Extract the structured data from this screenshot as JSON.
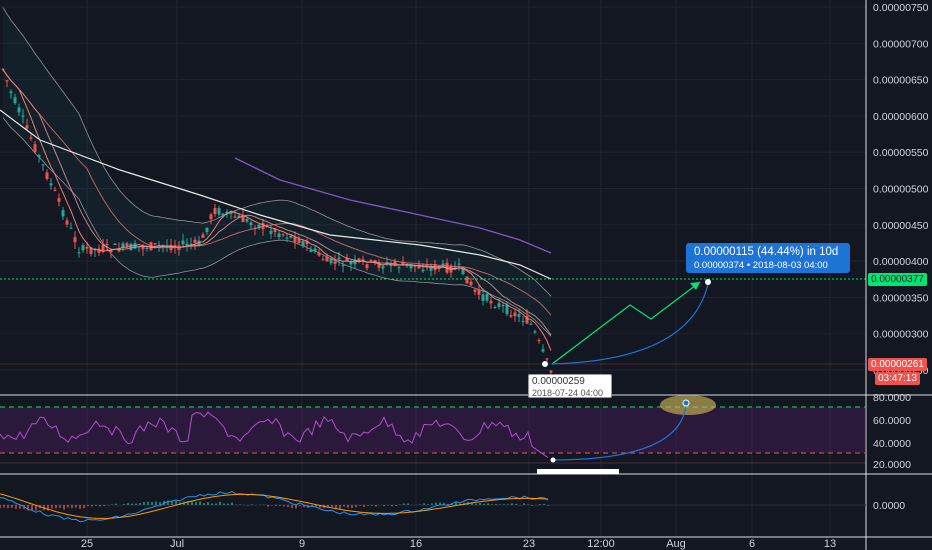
{
  "price_axis": {
    "labels": [
      "0.00000750",
      "0.00000700",
      "0.00000650",
      "0.00000600",
      "0.00000550",
      "0.00000500",
      "0.00000450",
      "0.00000400",
      "0.00000350",
      "0.00000300",
      "0.00000250"
    ]
  },
  "rsi_axis": {
    "labels": [
      "80.0000",
      "60.0000",
      "40.0000",
      "20.0000"
    ]
  },
  "macd_axis": {
    "labels": [
      "0.0000"
    ]
  },
  "time_axis": {
    "labels": [
      "25",
      "Jul",
      "9",
      "16",
      "23",
      "12:00",
      "Aug",
      "6",
      "13"
    ]
  },
  "level_badge": {
    "value": "0.00000377",
    "color": "#00e676"
  },
  "last_price_badge": {
    "value": "0.00000261",
    "countdown": "03:47:13",
    "color": "#ef5350"
  },
  "projection_box": {
    "line1": "0.00000115 (44.44%) in 10d",
    "line2": "0.00000374  •  2018-08-03  04:00",
    "color": "#1e73d6"
  },
  "low_tooltip": {
    "value": "0.00000259",
    "date": "2018-07-24 04:00"
  },
  "colors": {
    "background": "#131722",
    "candle_up": "#26a69a",
    "candle_down": "#ef5350",
    "rsi_line": "#9c27b0",
    "ma_long": "#e8e8e8",
    "ma_purple": "#7e57c2"
  }
}
